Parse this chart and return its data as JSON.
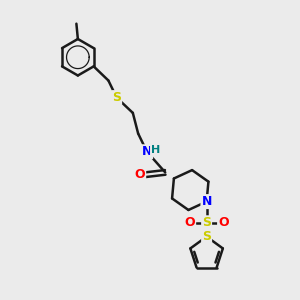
{
  "bg_color": "#ebebeb",
  "bond_color": "#1a1a1a",
  "bond_width": 1.8,
  "atom_colors": {
    "S": "#cccc00",
    "N": "#0000ff",
    "O": "#ff0000",
    "H_color": "#008080",
    "C": "#1a1a1a"
  },
  "font_size": 9,
  "fig_size": [
    3.0,
    3.0
  ],
  "dpi": 100,
  "xlim": [
    0,
    10
  ],
  "ylim": [
    0,
    10
  ]
}
